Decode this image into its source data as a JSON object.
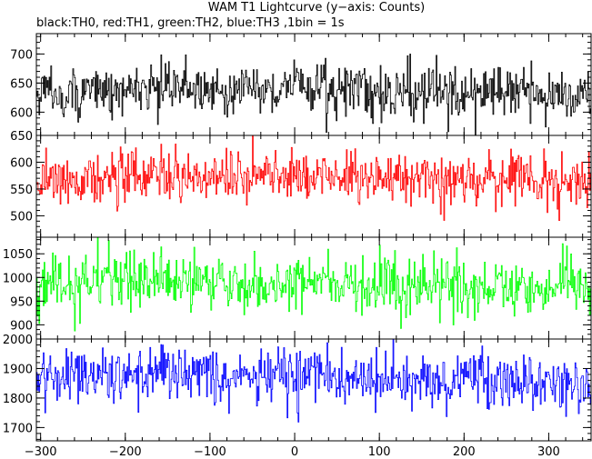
{
  "chart_data": {
    "type": "line",
    "title": "WAM T1 Lightcurve (y−axis: Counts)",
    "subtitle": "black:TH0, red:TH1, green:TH2, blue:TH3 ,1bin = 1s",
    "xlabel": "",
    "ylabel": "",
    "xlim": [
      -305,
      350
    ],
    "x_ticks": [
      -300,
      -200,
      -100,
      0,
      100,
      200,
      300
    ],
    "x_tick_labels": [
      "−300",
      "−200",
      "−100",
      "0",
      "100",
      "200",
      "300"
    ],
    "x_minor_step": 20,
    "bin_seconds": 1,
    "panels": [
      {
        "series_name": "TH0",
        "color": "#000000",
        "ylim": [
          560,
          735
        ],
        "y_ticks": [
          600,
          650,
          700
        ],
        "minor_step": 10,
        "baseline": 635,
        "noise_sd": 22,
        "profile": [
          [
            -305,
            632
          ],
          [
            -200,
            636
          ],
          [
            -130,
            645
          ],
          [
            -100,
            640
          ],
          [
            -20,
            638
          ],
          [
            -2,
            645
          ],
          [
            0,
            680
          ],
          [
            3,
            650
          ],
          [
            20,
            640
          ],
          [
            100,
            636
          ],
          [
            200,
            633
          ],
          [
            300,
            630
          ],
          [
            350,
            628
          ]
        ]
      },
      {
        "series_name": "TH1",
        "color": "#ff0000",
        "ylim": [
          460,
          650
        ],
        "y_ticks": [
          500,
          550,
          600,
          650
        ],
        "minor_step": 10,
        "baseline": 570,
        "noise_sd": 24,
        "profile": [
          [
            -305,
            570
          ],
          [
            -100,
            572
          ],
          [
            0,
            576
          ],
          [
            100,
            572
          ],
          [
            200,
            568
          ],
          [
            300,
            565
          ],
          [
            350,
            565
          ]
        ]
      },
      {
        "series_name": "TH2",
        "color": "#00ff00",
        "ylim": [
          870,
          1085
        ],
        "y_ticks": [
          900,
          950,
          1000,
          1050
        ],
        "minor_step": 10,
        "baseline": 985,
        "noise_sd": 30,
        "profile": [
          [
            -305,
            990
          ],
          [
            -150,
            992
          ],
          [
            0,
            987
          ],
          [
            150,
            982
          ],
          [
            300,
            978
          ],
          [
            350,
            976
          ]
        ]
      },
      {
        "series_name": "TH3",
        "color": "#0000ff",
        "ylim": [
          1655,
          2000
        ],
        "y_ticks": [
          1700,
          1800,
          1900,
          2000
        ],
        "minor_step": 20,
        "baseline": 1870,
        "noise_sd": 48,
        "profile": [
          [
            -305,
            1885
          ],
          [
            -200,
            1882
          ],
          [
            -100,
            1876
          ],
          [
            0,
            1868
          ],
          [
            100,
            1862
          ],
          [
            200,
            1858
          ],
          [
            300,
            1856
          ],
          [
            350,
            1855
          ]
        ]
      }
    ]
  }
}
